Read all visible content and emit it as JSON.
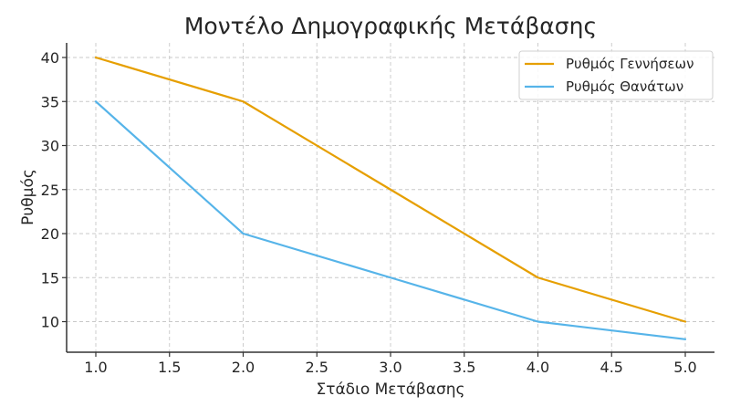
{
  "chart_data": {
    "type": "line",
    "title": "Μοντέλο Δημογραφικής Μετάβασης",
    "xlabel": "Στάδιο Μετάβασης",
    "ylabel": "Ρυθμός",
    "x": [
      1,
      2,
      3,
      4,
      5
    ],
    "series": [
      {
        "name": "Ρυθμός Γεννήσεων",
        "values": [
          40,
          35,
          25,
          15,
          10
        ],
        "color": "#E69F00"
      },
      {
        "name": "Ρυθμός Θανάτων",
        "values": [
          35,
          20,
          15,
          10,
          8
        ],
        "color": "#56B4E9"
      }
    ],
    "xlim": [
      0.8,
      5.2
    ],
    "ylim": [
      6.4,
      41.6
    ],
    "xticks": [
      1.0,
      1.5,
      2.0,
      2.5,
      3.0,
      3.5,
      4.0,
      4.5,
      5.0
    ],
    "xtick_labels": [
      "1.0",
      "1.5",
      "2.0",
      "2.5",
      "3.0",
      "3.5",
      "4.0",
      "4.5",
      "5.0"
    ],
    "yticks": [
      10,
      15,
      20,
      25,
      30,
      35,
      40
    ],
    "ytick_labels": [
      "10",
      "15",
      "20",
      "25",
      "30",
      "35",
      "40"
    ],
    "grid": true,
    "legend_position": "upper right"
  }
}
